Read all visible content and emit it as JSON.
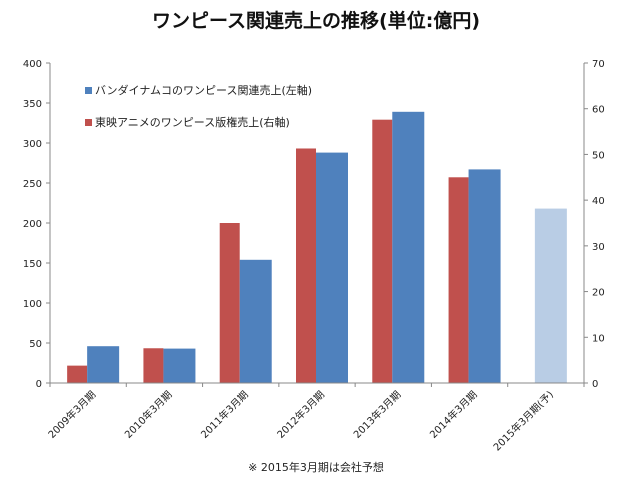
{
  "chart_data": {
    "type": "bar",
    "title": "ワンピース関連売上の推移(単位:億円)",
    "note": "※ 2015年3月期は会社予想",
    "categories": [
      "2009年3月期",
      "2010年3月期",
      "2011年3月期",
      "2012年3月期",
      "2013年3月期",
      "2014年3月期",
      "2015年3月期(予)"
    ],
    "series": [
      {
        "name": "バンダイナムコのワンピース関連売上(左軸)",
        "axis": "left",
        "color": "#4f81bd",
        "forecast_color": "#b9cde5",
        "values": [
          46,
          43,
          154,
          288,
          339,
          267,
          218
        ]
      },
      {
        "name": "東映アニメのワンピース版権売上(右軸)",
        "axis": "right",
        "color": "#c0504d",
        "values": [
          3.8,
          7.6,
          35,
          51.3,
          57.6,
          45,
          null
        ]
      }
    ],
    "y_left": {
      "min": 0,
      "max": 400,
      "ticks": [
        0,
        50,
        100,
        150,
        200,
        250,
        300,
        350,
        400
      ]
    },
    "y_right": {
      "min": 0,
      "max": 70,
      "ticks": [
        0,
        10,
        20,
        30,
        40,
        50,
        60,
        70
      ]
    },
    "grid": false,
    "legend_position": "top-left"
  }
}
